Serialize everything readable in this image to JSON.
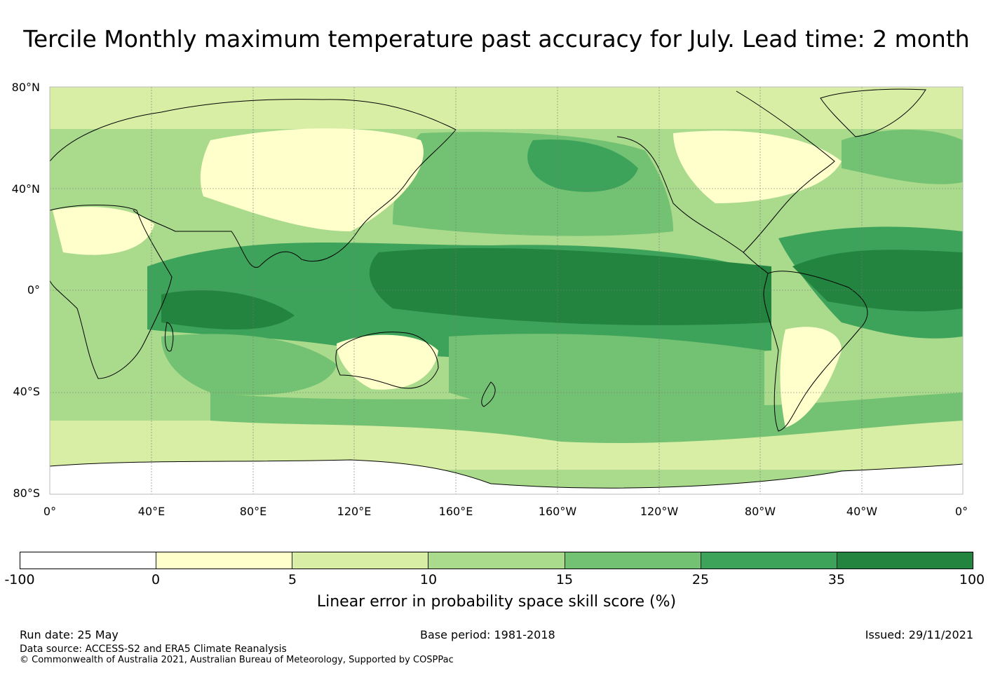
{
  "title": "Tercile Monthly maximum temperature past accuracy for July. Lead time: 2 month",
  "map": {
    "lat_labels": [
      "80°N",
      "40°N",
      "0°",
      "40°S",
      "80°S"
    ],
    "lon_labels": [
      "0°",
      "40°E",
      "80°E",
      "120°E",
      "160°E",
      "160°W",
      "120°W",
      "80°W",
      "40°W",
      "0°"
    ],
    "colors": {
      "ocean_high": "#23843f",
      "ocean_mid": "#3ea35a",
      "ocean_low": "#73c172",
      "land_mid": "#aada8c",
      "land_low": "#d8eea5",
      "land_none": "#ffffcc",
      "negative": "#ffffff",
      "coast": "#000000"
    }
  },
  "colorbar": {
    "ticks": [
      "-100",
      "0",
      "5",
      "10",
      "15",
      "25",
      "35",
      "100"
    ],
    "colors": [
      "#ffffff",
      "#ffffcc",
      "#d8eea5",
      "#aada8c",
      "#73c172",
      "#3ea35a",
      "#23843f"
    ],
    "label": "Linear error in probability space skill score (%)"
  },
  "footer": {
    "run_date": "Run date: 25 May",
    "base_period": "Base period: 1981-2018",
    "issued": "Issued: 29/11/2021",
    "data_source": "Data source: ACCESS-S2 and ERA5 Climate Reanalysis",
    "copyright": "© Commonwealth of Australia 2021, Australian Bureau of Meteorology, Supported by COSPPac"
  }
}
